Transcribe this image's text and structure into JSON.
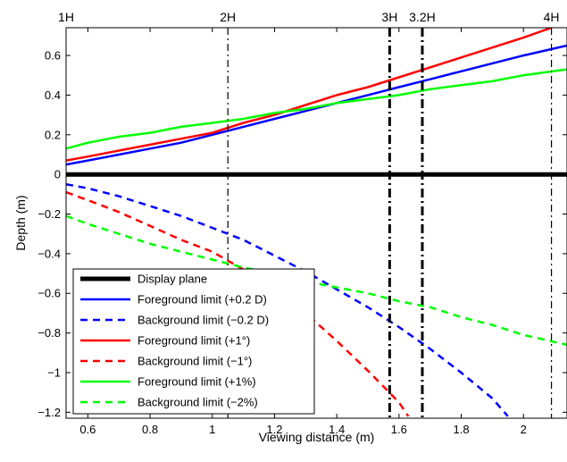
{
  "chart_data": {
    "type": "line",
    "title": "",
    "xlabel": "Viewing distance (m)",
    "ylabel": "Depth (m)",
    "xlim": [
      0.53,
      2.14
    ],
    "ylim": [
      -1.23,
      0.74
    ],
    "grid": false,
    "legend_position": "lower-left",
    "xticks": [
      0.6,
      0.8,
      1.0,
      1.2,
      1.4,
      1.6,
      1.8,
      2.0
    ],
    "xtick_labels": [
      "0.6",
      "0.8",
      "1",
      "1.2",
      "1.4",
      "1.6",
      "1.8",
      "2"
    ],
    "yticks": [
      0.6,
      0.4,
      0.2,
      0,
      -0.2,
      -0.4,
      -0.6,
      -0.8,
      -1.0,
      -1.2
    ],
    "ytick_labels": [
      "0.6",
      "0.4",
      "0.2",
      "0",
      "−0.2",
      "−0.4",
      "−0.6",
      "−0.8",
      "−1",
      "−1.2"
    ],
    "markers": [
      {
        "label": "1H",
        "x": 0.53,
        "style": "none"
      },
      {
        "label": "2H",
        "x": 1.05,
        "style": "thin"
      },
      {
        "label": "3H",
        "x": 1.57,
        "style": "thick"
      },
      {
        "label": "3.2H",
        "x": 1.675,
        "style": "thick"
      },
      {
        "label": "4H",
        "x": 2.09,
        "style": "thin"
      }
    ],
    "series": [
      {
        "name": "Display plane",
        "color": "#000000",
        "dash": "solid",
        "width": "heavy",
        "points": [
          [
            0.53,
            0
          ],
          [
            2.14,
            0
          ]
        ]
      },
      {
        "name": "Foreground limit (+0.2 D)",
        "color": "#0000ff",
        "dash": "solid",
        "width": "normal",
        "points": [
          [
            0.53,
            0.05
          ],
          [
            0.6,
            0.07
          ],
          [
            0.7,
            0.1
          ],
          [
            0.8,
            0.13
          ],
          [
            0.9,
            0.16
          ],
          [
            1.0,
            0.2
          ],
          [
            1.1,
            0.24
          ],
          [
            1.2,
            0.28
          ],
          [
            1.3,
            0.32
          ],
          [
            1.4,
            0.36
          ],
          [
            1.5,
            0.4
          ],
          [
            1.6,
            0.44
          ],
          [
            1.7,
            0.48
          ],
          [
            1.8,
            0.52
          ],
          [
            1.9,
            0.56
          ],
          [
            2.0,
            0.6
          ],
          [
            2.14,
            0.65
          ]
        ]
      },
      {
        "name": "Background limit (−0.2 D)",
        "color": "#0000ff",
        "dash": "dashed",
        "width": "normal",
        "points": [
          [
            0.53,
            -0.05
          ],
          [
            0.6,
            -0.07
          ],
          [
            0.7,
            -0.11
          ],
          [
            0.8,
            -0.16
          ],
          [
            0.9,
            -0.21
          ],
          [
            1.0,
            -0.27
          ],
          [
            1.1,
            -0.33
          ],
          [
            1.2,
            -0.41
          ],
          [
            1.3,
            -0.49
          ],
          [
            1.4,
            -0.58
          ],
          [
            1.5,
            -0.67
          ],
          [
            1.6,
            -0.77
          ],
          [
            1.7,
            -0.88
          ],
          [
            1.8,
            -1.0
          ],
          [
            1.9,
            -1.13
          ],
          [
            1.95,
            -1.22
          ]
        ]
      },
      {
        "name": "Foreground limit (+1°)",
        "color": "#ff0000",
        "dash": "solid",
        "width": "normal",
        "points": [
          [
            0.53,
            0.07
          ],
          [
            0.6,
            0.09
          ],
          [
            0.7,
            0.12
          ],
          [
            0.8,
            0.15
          ],
          [
            0.9,
            0.18
          ],
          [
            1.0,
            0.21
          ],
          [
            1.1,
            0.26
          ],
          [
            1.2,
            0.3
          ],
          [
            1.3,
            0.35
          ],
          [
            1.4,
            0.4
          ],
          [
            1.5,
            0.44
          ],
          [
            1.6,
            0.49
          ],
          [
            1.7,
            0.54
          ],
          [
            1.8,
            0.59
          ],
          [
            1.9,
            0.64
          ],
          [
            2.0,
            0.69
          ],
          [
            2.09,
            0.74
          ]
        ]
      },
      {
        "name": "Background limit (−1°)",
        "color": "#ff0000",
        "dash": "dashed",
        "width": "normal",
        "points": [
          [
            0.53,
            -0.09
          ],
          [
            0.6,
            -0.13
          ],
          [
            0.7,
            -0.19
          ],
          [
            0.8,
            -0.26
          ],
          [
            0.9,
            -0.33
          ],
          [
            1.0,
            -0.39
          ],
          [
            1.1,
            -0.48
          ],
          [
            1.2,
            -0.58
          ],
          [
            1.3,
            -0.7
          ],
          [
            1.4,
            -0.84
          ],
          [
            1.5,
            -0.99
          ],
          [
            1.6,
            -1.15
          ],
          [
            1.63,
            -1.22
          ]
        ]
      },
      {
        "name": "Foreground limit (+1%)",
        "color": "#00ff00",
        "dash": "solid",
        "width": "normal",
        "points": [
          [
            0.53,
            0.13
          ],
          [
            0.6,
            0.16
          ],
          [
            0.7,
            0.19
          ],
          [
            0.8,
            0.21
          ],
          [
            0.9,
            0.24
          ],
          [
            1.0,
            0.26
          ],
          [
            1.1,
            0.28
          ],
          [
            1.2,
            0.31
          ],
          [
            1.3,
            0.33
          ],
          [
            1.4,
            0.36
          ],
          [
            1.5,
            0.38
          ],
          [
            1.6,
            0.4
          ],
          [
            1.7,
            0.43
          ],
          [
            1.8,
            0.45
          ],
          [
            1.9,
            0.47
          ],
          [
            2.0,
            0.5
          ],
          [
            2.14,
            0.53
          ]
        ]
      },
      {
        "name": "Background limit (−2%)",
        "color": "#00ff00",
        "dash": "dashed",
        "width": "normal",
        "points": [
          [
            0.53,
            -0.21
          ],
          [
            0.6,
            -0.25
          ],
          [
            0.7,
            -0.3
          ],
          [
            0.8,
            -0.35
          ],
          [
            0.9,
            -0.39
          ],
          [
            1.0,
            -0.43
          ],
          [
            1.1,
            -0.47
          ],
          [
            1.2,
            -0.5
          ],
          [
            1.3,
            -0.54
          ],
          [
            1.4,
            -0.57
          ],
          [
            1.5,
            -0.6
          ],
          [
            1.6,
            -0.64
          ],
          [
            1.7,
            -0.67
          ],
          [
            1.8,
            -0.72
          ],
          [
            1.9,
            -0.76
          ],
          [
            2.0,
            -0.81
          ],
          [
            2.14,
            -0.86
          ]
        ]
      }
    ]
  }
}
